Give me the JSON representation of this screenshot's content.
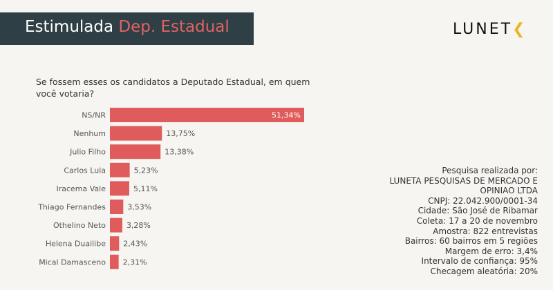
{
  "header": {
    "title_main": "Estimulada",
    "title_accent": "Dep. Estadual",
    "logo_text": "LUNETA"
  },
  "question": "Se fossem esses os candidatos a Deputado Estadual, em quem você votaria?",
  "chart_data": {
    "type": "bar",
    "orientation": "horizontal",
    "categories": [
      "NS/NR",
      "Nenhum",
      "Julio Filho",
      "Carlos Lula",
      "Iracema Vale",
      "Thiago Fernandes",
      "Othelino Neto",
      "Helena Duailibe",
      "Mical Damasceno"
    ],
    "values": [
      51.34,
      13.75,
      13.38,
      5.23,
      5.11,
      3.53,
      3.28,
      2.43,
      2.31
    ],
    "data_labels": [
      "51,34%",
      "13,75%",
      "13,38%",
      "5,23%",
      "5,11%",
      "3,53%",
      "3,28%",
      "2,43%",
      "2,31%"
    ],
    "bar_color": "#e05c5c",
    "grid": false
  },
  "info": [
    "Pesquisa realizada por:",
    "LUNETA PESQUISAS DE MERCADO E OPINIAO LTDA",
    "CNPJ: 22.042.900/0001-34",
    "Cidade: São José de Ribamar",
    "Coleta: 17 a 20 de novembro",
    "Amostra: 822 entrevistas",
    "Bairros: 60 bairros em 5 regiões",
    "Margem de erro: 3,4%",
    "Intervalo de confiança: 95%",
    "Checagem aleatória: 20%"
  ],
  "colors": {
    "banner": "#2e3f46",
    "accent": "#e06363",
    "logo_accent": "#e6b820"
  }
}
